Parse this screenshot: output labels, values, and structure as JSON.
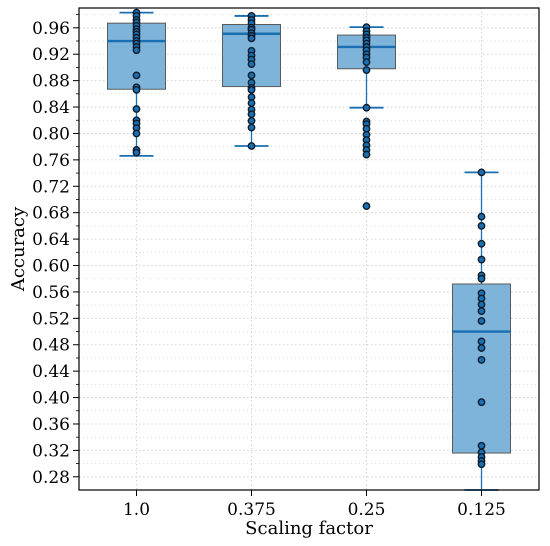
{
  "chart_data": {
    "type": "box",
    "title": "",
    "xlabel": "Scaling factor",
    "ylabel": "Accuracy",
    "ylim": [
      0.26,
      0.99
    ],
    "yticks": [
      "0.28",
      "0.32",
      "0.36",
      "0.40",
      "0.44",
      "0.48",
      "0.52",
      "0.56",
      "0.60",
      "0.64",
      "0.68",
      "0.72",
      "0.76",
      "0.80",
      "0.84",
      "0.88",
      "0.92",
      "0.96"
    ],
    "grid": true,
    "categories": [
      "1.0",
      "0.375",
      "0.25",
      "0.125"
    ],
    "boxes": [
      {
        "category": "1.0",
        "whisker_low": 0.766,
        "q1": 0.867,
        "median": 0.94,
        "q3": 0.967,
        "whisker_high": 0.983
      },
      {
        "category": "0.375",
        "whisker_low": 0.781,
        "q1": 0.871,
        "median": 0.951,
        "q3": 0.965,
        "whisker_high": 0.978
      },
      {
        "category": "0.25",
        "whisker_low": 0.839,
        "q1": 0.898,
        "median": 0.931,
        "q3": 0.949,
        "whisker_high": 0.961
      },
      {
        "category": "0.125",
        "whisker_low": 0.26,
        "q1": 0.316,
        "median": 0.5,
        "q3": 0.572,
        "whisker_high": 0.741
      }
    ],
    "points": [
      {
        "category": "1.0",
        "values": [
          0.983,
          0.978,
          0.972,
          0.968,
          0.963,
          0.958,
          0.954,
          0.95,
          0.945,
          0.94,
          0.936,
          0.931,
          0.926,
          0.888,
          0.87,
          0.866,
          0.837,
          0.82,
          0.815,
          0.808,
          0.8,
          0.775,
          0.771
        ]
      },
      {
        "category": "0.375",
        "values": [
          0.978,
          0.972,
          0.967,
          0.96,
          0.957,
          0.952,
          0.948,
          0.944,
          0.925,
          0.918,
          0.912,
          0.905,
          0.888,
          0.877,
          0.869,
          0.866,
          0.855,
          0.846,
          0.836,
          0.829,
          0.819,
          0.809,
          0.781
        ]
      },
      {
        "category": "0.25",
        "values": [
          0.961,
          0.955,
          0.95,
          0.945,
          0.941,
          0.936,
          0.931,
          0.926,
          0.92,
          0.915,
          0.908,
          0.896,
          0.839,
          0.818,
          0.814,
          0.807,
          0.798,
          0.79,
          0.782,
          0.775,
          0.768,
          0.69
        ]
      },
      {
        "category": "0.125",
        "values": [
          0.741,
          0.674,
          0.66,
          0.633,
          0.609,
          0.585,
          0.58,
          0.558,
          0.55,
          0.541,
          0.531,
          0.516,
          0.485,
          0.475,
          0.457,
          0.393,
          0.327,
          0.317,
          0.31,
          0.304,
          0.299
        ]
      }
    ],
    "colors": {
      "box_fill": "#7fb4da",
      "box_stroke": "#5a5a5a",
      "median": "#1a6fb0",
      "whisker": "#1a6fb0",
      "point_fill": "#1a6fb0",
      "point_stroke": "#0d1b2a",
      "grid": "#c8c8c8"
    }
  }
}
